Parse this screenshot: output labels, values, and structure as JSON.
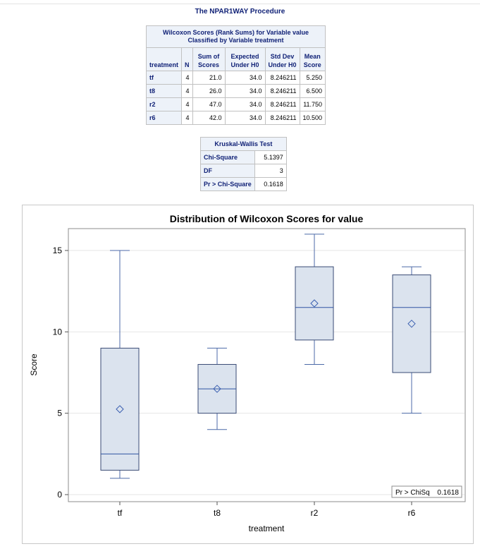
{
  "procedure_title": "The NPAR1WAY Procedure",
  "wilcoxon_table": {
    "caption_line1": "Wilcoxon Scores (Rank Sums) for Variable value",
    "caption_line2": "Classified by Variable treatment",
    "headers": {
      "treatment": "treatment",
      "n": "N",
      "sum1": "Sum of",
      "sum2": "Scores",
      "exp1": "Expected",
      "exp2": "Under H0",
      "sd1": "Std Dev",
      "sd2": "Under H0",
      "mean1": "Mean",
      "mean2": "Score"
    },
    "rows": [
      {
        "treatment": "tf",
        "n": "4",
        "sum": "21.0",
        "expected": "34.0",
        "stddev": "8.246211",
        "mean": "5.250"
      },
      {
        "treatment": "t8",
        "n": "4",
        "sum": "26.0",
        "expected": "34.0",
        "stddev": "8.246211",
        "mean": "6.500"
      },
      {
        "treatment": "r2",
        "n": "4",
        "sum": "47.0",
        "expected": "34.0",
        "stddev": "8.246211",
        "mean": "11.750"
      },
      {
        "treatment": "r6",
        "n": "4",
        "sum": "42.0",
        "expected": "34.0",
        "stddev": "8.246211",
        "mean": "10.500"
      }
    ]
  },
  "kruskal_table": {
    "caption": "Kruskal-Wallis Test",
    "rows": [
      {
        "label": "Chi-Square",
        "value": "5.1397"
      },
      {
        "label": "DF",
        "value": "3"
      },
      {
        "label": "Pr > Chi-Square",
        "value": "0.1618"
      }
    ]
  },
  "colors": {
    "box_fill": "#dbe3ee",
    "box_stroke": "#3a4b75",
    "whisker": "#4c6aa8",
    "median": "#2f55a3",
    "mean_marker": "#3a5fb0",
    "header_text": "#112277",
    "header_bg": "#edf2f9"
  },
  "chart_data": {
    "type": "box",
    "title": "Distribution of Wilcoxon Scores for value",
    "xlabel": "treatment",
    "ylabel": "Score",
    "ylim": [
      0,
      16
    ],
    "yticks": [
      0,
      5,
      10,
      15
    ],
    "grid": true,
    "inset_label": "Pr > ChiSq",
    "inset_value": "0.1618",
    "categories": [
      "tf",
      "t8",
      "r2",
      "r6"
    ],
    "boxes": [
      {
        "name": "tf",
        "min": 1,
        "q1": 1.5,
        "median": 2.5,
        "q3": 9,
        "max": 15,
        "mean": 5.25
      },
      {
        "name": "t8",
        "min": 4,
        "q1": 5,
        "median": 6.5,
        "q3": 8,
        "max": 9,
        "mean": 6.5
      },
      {
        "name": "r2",
        "min": 8,
        "q1": 9.5,
        "median": 11.5,
        "q3": 14,
        "max": 16,
        "mean": 11.75
      },
      {
        "name": "r6",
        "min": 5,
        "q1": 7.5,
        "median": 11.5,
        "q3": 13.5,
        "max": 14,
        "mean": 10.5
      }
    ]
  }
}
